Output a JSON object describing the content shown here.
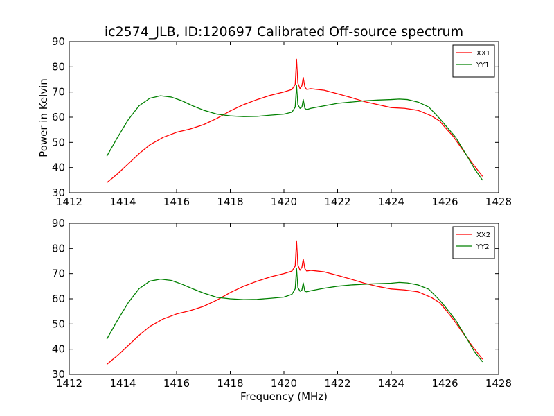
{
  "figure": {
    "title": "ic2574_JLB, ID:120697 Calibrated Off-source spectrum",
    "xlabel": "Frequency (MHz)",
    "ylabel": "Power in Kelvin"
  },
  "chart_data": [
    {
      "type": "line",
      "xlabel": "",
      "ylabel": "Power in Kelvin",
      "xlim": [
        1412,
        1428
      ],
      "ylim": [
        30,
        90
      ],
      "xticks": [
        1412,
        1414,
        1416,
        1418,
        1420,
        1422,
        1424,
        1426,
        1428
      ],
      "yticks": [
        30,
        40,
        50,
        60,
        70,
        80,
        90
      ],
      "grid": false,
      "legend": "top-right",
      "series": [
        {
          "name": "XX1",
          "color": "#ff0000",
          "x": [
            1413.4,
            1413.8,
            1414.2,
            1414.6,
            1415.0,
            1415.5,
            1416.0,
            1416.5,
            1417.0,
            1417.5,
            1418.0,
            1418.5,
            1419.0,
            1419.5,
            1420.0,
            1420.3,
            1420.42,
            1420.47,
            1420.52,
            1420.6,
            1420.67,
            1420.72,
            1420.78,
            1420.85,
            1421.0,
            1421.5,
            1422.0,
            1422.5,
            1423.0,
            1423.5,
            1424.0,
            1424.5,
            1425.0,
            1425.5,
            1425.8,
            1426.0,
            1426.3,
            1426.6,
            1427.0,
            1427.4
          ],
          "y": [
            34.0,
            37.5,
            41.5,
            45.5,
            49.0,
            52.0,
            54.0,
            55.3,
            57.0,
            59.5,
            62.5,
            65.0,
            67.0,
            68.7,
            70.0,
            71.0,
            73.0,
            83.0,
            73.5,
            71.3,
            72.5,
            75.8,
            72.0,
            71.0,
            71.3,
            70.7,
            69.3,
            67.8,
            66.2,
            65.0,
            63.8,
            63.5,
            62.7,
            60.5,
            58.5,
            56.0,
            52.5,
            48.0,
            42.0,
            36.5
          ]
        },
        {
          "name": "YY1",
          "color": "#008000",
          "x": [
            1413.4,
            1413.8,
            1414.2,
            1414.6,
            1415.0,
            1415.4,
            1415.8,
            1416.2,
            1416.6,
            1417.0,
            1417.5,
            1418.0,
            1418.5,
            1419.0,
            1419.5,
            1420.0,
            1420.3,
            1420.42,
            1420.47,
            1420.52,
            1420.6,
            1420.67,
            1420.72,
            1420.78,
            1420.85,
            1421.0,
            1421.5,
            1422.0,
            1422.5,
            1423.0,
            1423.5,
            1424.0,
            1424.3,
            1424.6,
            1425.0,
            1425.4,
            1425.8,
            1426.0,
            1426.4,
            1426.8,
            1427.1,
            1427.4
          ],
          "y": [
            44.5,
            52.0,
            59.0,
            64.5,
            67.5,
            68.5,
            68.0,
            66.5,
            64.5,
            62.8,
            61.2,
            60.5,
            60.2,
            60.3,
            60.8,
            61.2,
            62.0,
            64.0,
            72.5,
            65.0,
            63.5,
            64.0,
            67.0,
            63.5,
            63.0,
            63.5,
            64.5,
            65.5,
            66.0,
            66.5,
            66.8,
            67.0,
            67.2,
            67.0,
            66.0,
            64.0,
            59.5,
            57.0,
            52.0,
            45.0,
            39.5,
            35.0
          ]
        }
      ]
    },
    {
      "type": "line",
      "xlabel": "Frequency (MHz)",
      "ylabel": "",
      "xlim": [
        1412,
        1428
      ],
      "ylim": [
        30,
        90
      ],
      "xticks": [
        1412,
        1414,
        1416,
        1418,
        1420,
        1422,
        1424,
        1426,
        1428
      ],
      "yticks": [
        30,
        40,
        50,
        60,
        70,
        80,
        90
      ],
      "grid": false,
      "legend": "top-right",
      "series": [
        {
          "name": "XX2",
          "color": "#ff0000",
          "x": [
            1413.4,
            1413.8,
            1414.2,
            1414.6,
            1415.0,
            1415.5,
            1416.0,
            1416.5,
            1417.0,
            1417.5,
            1418.0,
            1418.5,
            1419.0,
            1419.5,
            1420.0,
            1420.3,
            1420.42,
            1420.47,
            1420.52,
            1420.6,
            1420.67,
            1420.72,
            1420.78,
            1420.85,
            1421.0,
            1421.5,
            1422.0,
            1422.5,
            1423.0,
            1423.5,
            1424.0,
            1424.5,
            1425.0,
            1425.5,
            1425.8,
            1426.0,
            1426.3,
            1426.6,
            1427.0,
            1427.4
          ],
          "y": [
            34.0,
            37.5,
            41.5,
            45.5,
            49.0,
            52.0,
            54.0,
            55.3,
            57.0,
            59.5,
            62.5,
            65.0,
            67.0,
            68.7,
            70.0,
            71.0,
            73.0,
            83.0,
            73.5,
            71.3,
            72.5,
            75.8,
            72.0,
            71.0,
            71.3,
            70.7,
            69.3,
            67.8,
            66.2,
            64.9,
            63.9,
            63.5,
            62.8,
            60.5,
            58.5,
            56.0,
            52.0,
            47.5,
            41.5,
            36.0
          ]
        },
        {
          "name": "YY2",
          "color": "#008000",
          "x": [
            1413.4,
            1413.8,
            1414.2,
            1414.6,
            1415.0,
            1415.4,
            1415.8,
            1416.2,
            1416.6,
            1417.0,
            1417.5,
            1418.0,
            1418.5,
            1419.0,
            1419.5,
            1420.0,
            1420.3,
            1420.42,
            1420.47,
            1420.52,
            1420.6,
            1420.67,
            1420.72,
            1420.78,
            1420.85,
            1421.0,
            1421.5,
            1422.0,
            1422.5,
            1423.0,
            1423.5,
            1424.0,
            1424.3,
            1424.6,
            1425.0,
            1425.4,
            1425.8,
            1426.0,
            1426.4,
            1426.8,
            1427.1,
            1427.4
          ],
          "y": [
            44.0,
            51.5,
            58.5,
            64.0,
            67.0,
            67.8,
            67.3,
            65.8,
            64.0,
            62.3,
            60.6,
            60.0,
            59.7,
            59.8,
            60.2,
            60.7,
            61.8,
            64.0,
            72.0,
            64.5,
            63.0,
            63.5,
            66.3,
            63.0,
            62.8,
            63.2,
            64.2,
            65.0,
            65.5,
            65.8,
            66.0,
            66.2,
            66.5,
            66.3,
            65.5,
            63.8,
            59.5,
            57.0,
            51.5,
            44.5,
            39.0,
            35.0
          ]
        }
      ]
    }
  ]
}
